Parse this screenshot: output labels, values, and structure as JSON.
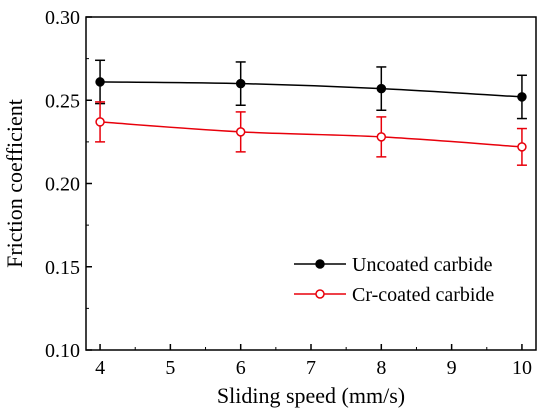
{
  "chart_data": {
    "type": "line",
    "xlabel": "Sliding speed (mm/s)",
    "ylabel": "Friction coefficient",
    "xlim": [
      3.8,
      10.2
    ],
    "ylim": [
      0.1,
      0.3
    ],
    "xticks": [
      4,
      5,
      6,
      7,
      8,
      9,
      10
    ],
    "yticks": [
      0.1,
      0.15,
      0.2,
      0.25,
      0.3
    ],
    "xtick_labels": [
      "4",
      "5",
      "6",
      "7",
      "8",
      "9",
      "10"
    ],
    "ytick_labels": [
      "0.10",
      "0.15",
      "0.20",
      "0.25",
      "0.30"
    ],
    "legend_position": "bottom-right",
    "grid": false,
    "series": [
      {
        "name": "Uncoated carbide",
        "color": "#000000",
        "marker": "filled-circle",
        "x": [
          4,
          6,
          8,
          10
        ],
        "y": [
          0.261,
          0.26,
          0.257,
          0.252
        ],
        "error": [
          0.013,
          0.013,
          0.013,
          0.013
        ]
      },
      {
        "name": "Cr-coated carbide",
        "color": "#e8000b",
        "marker": "open-circle",
        "x": [
          4,
          6,
          8,
          10
        ],
        "y": [
          0.237,
          0.231,
          0.228,
          0.222
        ],
        "error": [
          0.012,
          0.012,
          0.012,
          0.011
        ]
      }
    ]
  }
}
